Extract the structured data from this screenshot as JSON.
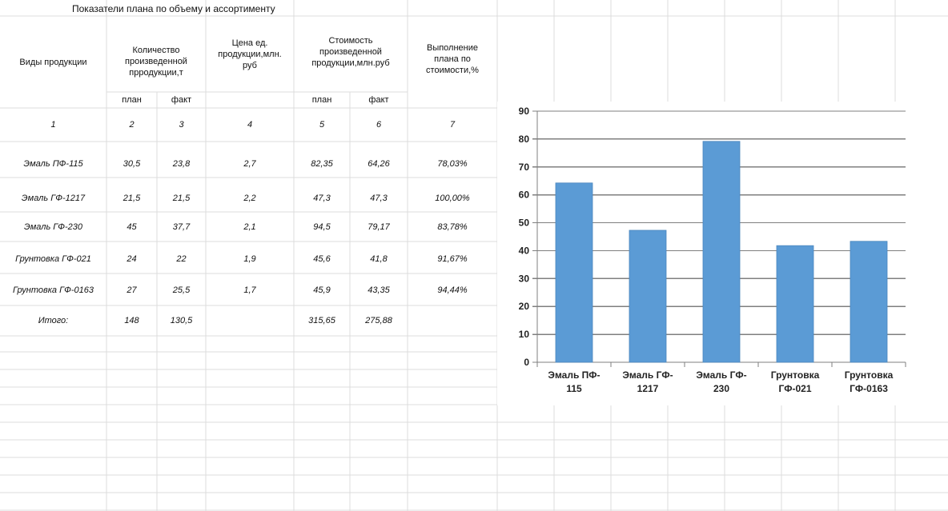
{
  "sheet": {
    "title": "Показатели плана по объему и ассортименту",
    "headers": {
      "product": "Виды продукции",
      "quantity": "Количество произведенной прродукции,т",
      "price": "Цена ед. продукции,млн. руб",
      "cost": "Стоимость произведенной продукции,млн.руб",
      "execution": "Выполнение плана по стоимости,%",
      "plan": "план",
      "fact": "факт"
    },
    "column_numbers": [
      "1",
      "2",
      "3",
      "4",
      "5",
      "6",
      "7"
    ],
    "rows": [
      {
        "name": "Эмаль ПФ-115",
        "qty_plan": "30,5",
        "qty_fact": "23,8",
        "price": "2,7",
        "cost_plan": "82,35",
        "cost_fact": "64,26",
        "pct": "78,03%"
      },
      {
        "name": "Эмаль ГФ-1217",
        "qty_plan": "21,5",
        "qty_fact": "21,5",
        "price": "2,2",
        "cost_plan": "47,3",
        "cost_fact": "47,3",
        "pct": "100,00%"
      },
      {
        "name": "Эмаль ГФ-230",
        "qty_plan": "45",
        "qty_fact": "37,7",
        "price": "2,1",
        "cost_plan": "94,5",
        "cost_fact": "79,17",
        "pct": "83,78%"
      },
      {
        "name": "Грунтовка ГФ-021",
        "qty_plan": "24",
        "qty_fact": "22",
        "price": "1,9",
        "cost_plan": "45,6",
        "cost_fact": "41,8",
        "pct": "91,67%"
      },
      {
        "name": "Грунтовка ГФ-0163",
        "qty_plan": "27",
        "qty_fact": "25,5",
        "price": "1,7",
        "cost_plan": "45,9",
        "cost_fact": "43,35",
        "pct": "94,44%"
      }
    ],
    "total": {
      "label": "Итого:",
      "qty_plan": "148",
      "qty_fact": "130,5",
      "cost_plan": "315,65",
      "cost_fact": "275,88"
    }
  },
  "chart_data": {
    "type": "bar",
    "categories": [
      [
        "Эмаль ПФ-",
        "115"
      ],
      [
        "Эмаль ГФ-",
        "1217"
      ],
      [
        "Эмаль ГФ-",
        "230"
      ],
      [
        "Грунтовка",
        "ГФ-021"
      ],
      [
        "Грунтовка",
        "ГФ-0163"
      ]
    ],
    "values": [
      64.26,
      47.3,
      79.17,
      41.8,
      43.35
    ],
    "yticks": [
      "0",
      "10",
      "20",
      "30",
      "40",
      "50",
      "60",
      "70",
      "80",
      "90"
    ],
    "ylim": [
      0,
      90
    ],
    "grid": true,
    "legend": "none",
    "bar_color": "#5b9bd5",
    "title": "",
    "xlabel": "",
    "ylabel": ""
  }
}
